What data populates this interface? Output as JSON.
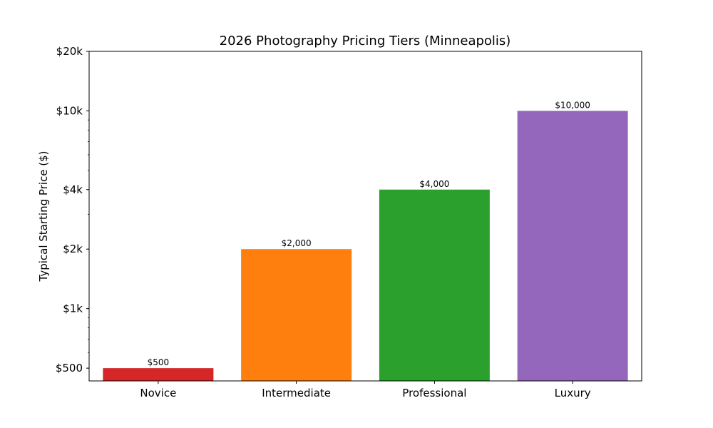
{
  "chart_data": {
    "type": "bar",
    "title": "2026 Photography Pricing Tiers (Minneapolis)",
    "xlabel": "",
    "ylabel": "Typical Starting Price ($)",
    "yscale": "log",
    "ylim": [
      431,
      20000
    ],
    "categories": [
      "Novice",
      "Intermediate",
      "Professional",
      "Luxury"
    ],
    "values": [
      500,
      2000,
      4000,
      10000
    ],
    "value_labels": [
      "$500",
      "$2,000",
      "$4,000",
      "$10,000"
    ],
    "colors": [
      "#d62728",
      "#ff7f0e",
      "#2ca02c",
      "#9467bd"
    ],
    "yticks": [
      {
        "value": 500,
        "label": "$500"
      },
      {
        "value": 1000,
        "label": "$1k"
      },
      {
        "value": 2000,
        "label": "$2k"
      },
      {
        "value": 4000,
        "label": "$4k"
      },
      {
        "value": 10000,
        "label": "$10k"
      },
      {
        "value": 20000,
        "label": "$20k"
      }
    ],
    "grid": false,
    "legend": null
  }
}
